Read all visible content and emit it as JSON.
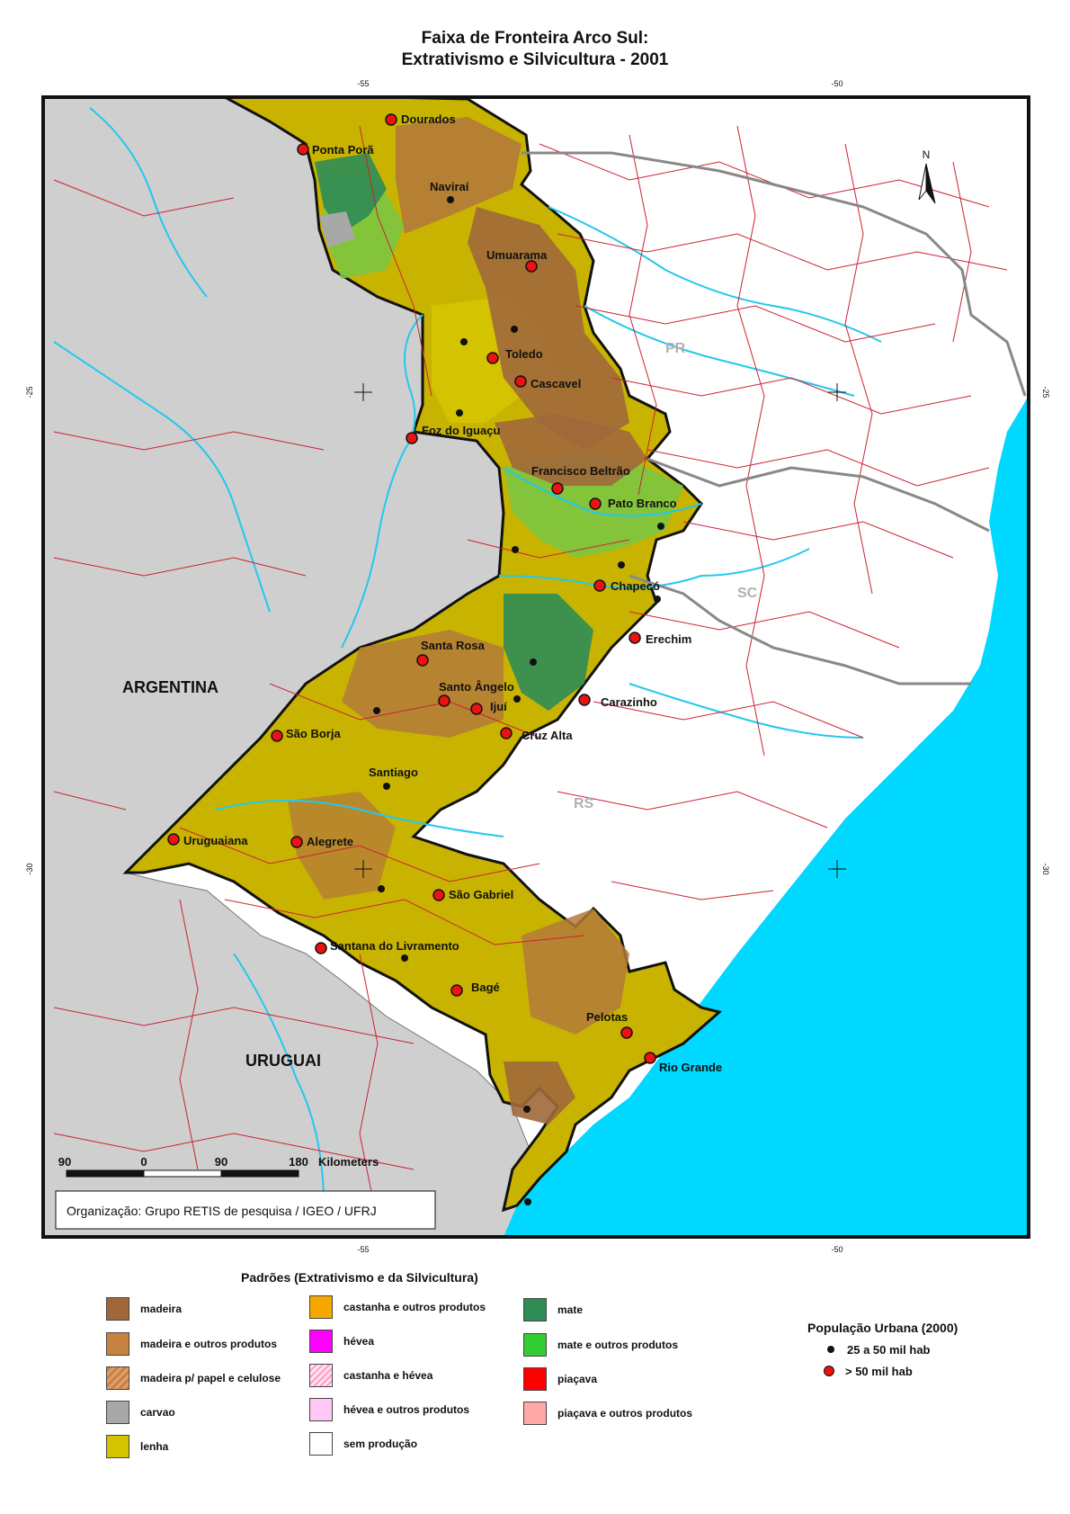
{
  "title_line1": "Faixa de Fronteira Arco Sul:",
  "title_line2": "Extrativismo e Silvicultura - 2001",
  "graticule": {
    "top": [
      "-55",
      "-50"
    ],
    "bottom": [
      "-55",
      "-50"
    ],
    "left": [
      "-25",
      "-30"
    ],
    "right": [
      "-25",
      "-30"
    ]
  },
  "country_labels": [
    "ARGENTINA",
    "URUGUAI"
  ],
  "state_labels": [
    "PR",
    "SC",
    "RS"
  ],
  "north_label": "N",
  "cities_large": [
    "Dourados",
    "Ponta Porã",
    "Umuarama",
    "Toledo",
    "Cascavel",
    "Foz do Iguaçu",
    "Francisco Beltrão",
    "Pato Branco",
    "Chapecó",
    "Erechim",
    "Santa Rosa",
    "Santo Ângelo",
    "Ijuí",
    "Carazinho",
    "São Borja",
    "Cruz Alta",
    "Uruguaiana",
    "Alegrete",
    "São Gabriel",
    "Santana do Livramento",
    "Bagé",
    "Pelotas",
    "Rio Grande"
  ],
  "cities_small": [
    "Naviraí",
    "Santiago"
  ],
  "scale_bar": {
    "ticks": [
      "90",
      "0",
      "90",
      "180"
    ],
    "unit": "Kilometers"
  },
  "credit": "Organização: Grupo RETIS de pesquisa / IGEO / UFRJ",
  "legend": {
    "heading": "Padrões (Extrativismo e da Silvicultura)",
    "items": [
      {
        "label": "madeira",
        "color": "#a0683a"
      },
      {
        "label": "madeira e outros produtos",
        "color": "#c8823f"
      },
      {
        "label": "madeira p/ papel e celulose",
        "color": "#c8823f",
        "hatch": "#e0a070"
      },
      {
        "label": "carvao",
        "color": "#a8a8a8"
      },
      {
        "label": "lenha",
        "color": "#d4c400"
      },
      {
        "label": "castanha e outros produtos",
        "color": "#f5a800"
      },
      {
        "label": "hévea",
        "color": "#ff00ff"
      },
      {
        "label": "castanha e hévea",
        "color": "#ffd4e8",
        "hatch": "#ff9ac8"
      },
      {
        "label": "hévea e outros produtos",
        "color": "#ffc8f5"
      },
      {
        "label": "sem produção",
        "color": "#ffffff"
      },
      {
        "label": "mate",
        "color": "#2f8c55"
      },
      {
        "label": "mate e outros produtos",
        "color": "#33cc33"
      },
      {
        "label": "piaçava",
        "color": "#ff0000"
      },
      {
        "label": "piaçava e outros produtos",
        "color": "#ffa8a8"
      }
    ]
  },
  "population": {
    "heading": "População Urbana (2000)",
    "small": "25 a 50 mil hab",
    "large": "> 50 mil hab"
  },
  "colors": {
    "ocean": "#00d8ff",
    "foreign": "#cfcfcf",
    "roads": "#cc2233",
    "rivers": "#22c8ee",
    "city": "#ee1111"
  }
}
